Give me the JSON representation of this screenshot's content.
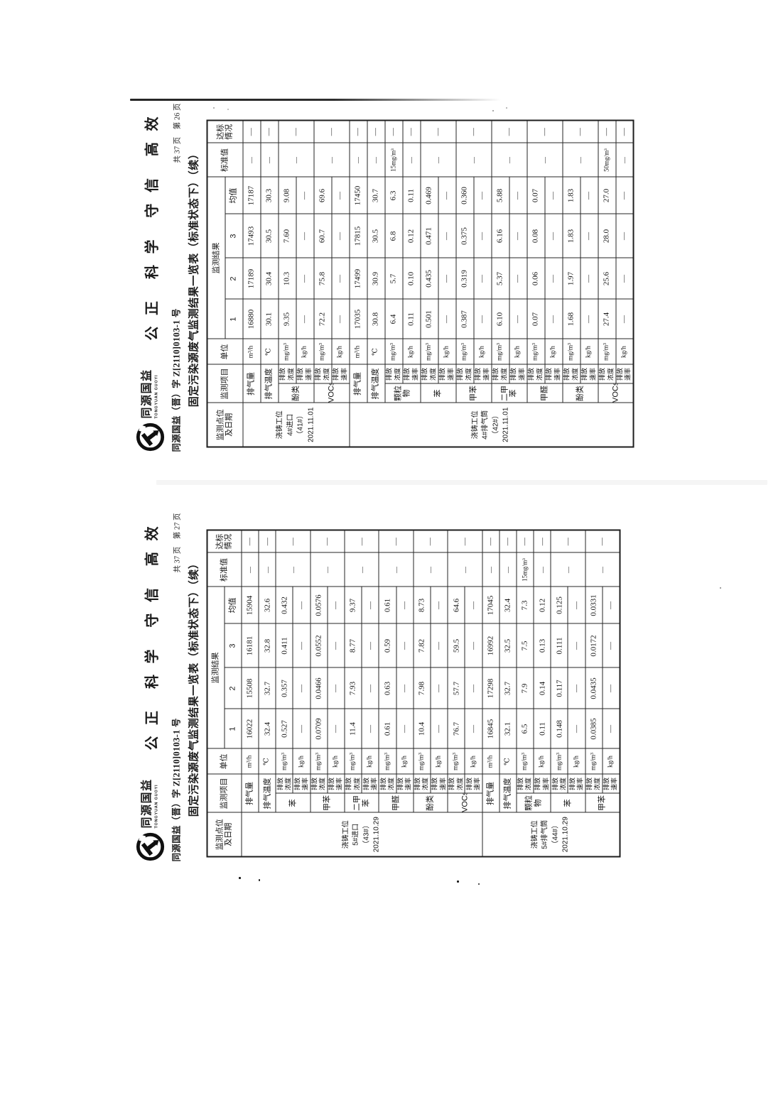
{
  "letterhead": {
    "brand_cn": "同源国益",
    "brand_en": "TONGYUAN GUOYI",
    "motto": [
      "公 正",
      "科 学",
      "守 信",
      "高 效"
    ],
    "doc_no": "同源国益（晋）字 Z[2110]0103-1 号",
    "title": "固定污染源废气监测结果一览表（标准状态下）（续）"
  },
  "labels": {
    "head": {
      "site": "监测点位\n及日期",
      "item": "监测项目",
      "unit": "单位",
      "result": "监测结果",
      "cols": [
        "1",
        "2",
        "3",
        "均值"
      ],
      "std": "标准值",
      "ok": "达标\n情况"
    },
    "conc": "排放\n浓度",
    "rate": "排放\n速率",
    "unit_conc": "mg/m³",
    "unit_rate": "kg/h"
  },
  "pages": [
    {
      "page_info": "共 37 页　第 26 页",
      "blocks": [
        {
          "site": [
            "浇铸工位",
            "4#进口",
            "（41#）",
            "2021.11.01"
          ],
          "rows": [
            {
              "item": "排气量",
              "unit": "m³/h",
              "vals": [
                "16880",
                "17189",
                "17493",
                "17187"
              ],
              "std": "—",
              "ok": "—"
            },
            {
              "item": "排气温度",
              "unit": "℃",
              "vals": [
                "30.1",
                "30.4",
                "30.5",
                "30.3"
              ],
              "std": "—",
              "ok": "—"
            },
            {
              "item": "酚类",
              "conc": [
                "9.35",
                "10.3",
                "7.60",
                "9.08"
              ],
              "rate": [
                "—",
                "—",
                "—",
                "—"
              ],
              "std": "—",
              "ok": "—"
            },
            {
              "item": "VOCs",
              "conc": [
                "72.2",
                "75.8",
                "60.7",
                "69.6"
              ],
              "rate": [
                "—",
                "—",
                "—",
                "—"
              ],
              "std": "—",
              "ok": "—"
            }
          ]
        },
        {
          "site": [
            "浇铸工位",
            "4#排气筒",
            "（42#）",
            "2021.11.01"
          ],
          "rows": [
            {
              "item": "排气量",
              "unit": "m³/h",
              "vals": [
                "17035",
                "17499",
                "17815",
                "17450"
              ],
              "std": "—",
              "ok": "—"
            },
            {
              "item": "排气温度",
              "unit": "℃",
              "vals": [
                "30.8",
                "30.9",
                "30.5",
                "30.7"
              ],
              "std": "—",
              "ok": "—"
            },
            {
              "item": "颗粒物",
              "conc": [
                "6.4",
                "5.7",
                "6.8",
                "6.3"
              ],
              "rate": [
                "0.11",
                "0.10",
                "0.12",
                "0.11"
              ],
              "std_conc": "15mg/m³",
              "std_rate": "—",
              "ok_conc": "—",
              "ok_rate": "—"
            },
            {
              "item": "苯",
              "conc": [
                "0.501",
                "0.435",
                "0.471",
                "0.469"
              ],
              "rate": [
                "—",
                "—",
                "—",
                "—"
              ],
              "std": "—",
              "ok": "—"
            },
            {
              "item": "甲苯",
              "conc": [
                "0.387",
                "0.319",
                "0.375",
                "0.360"
              ],
              "rate": [
                "—",
                "—",
                "—",
                "—"
              ],
              "std": "—",
              "ok": "—"
            },
            {
              "item": "二甲苯",
              "conc": [
                "6.10",
                "5.37",
                "6.16",
                "5.88"
              ],
              "rate": [
                "—",
                "—",
                "—",
                "—"
              ],
              "std": "—",
              "ok": "—"
            },
            {
              "item": "甲醛",
              "conc": [
                "0.07",
                "0.06",
                "0.08",
                "0.07"
              ],
              "rate": [
                "—",
                "—",
                "—",
                "—"
              ],
              "std": "—",
              "ok": "—"
            },
            {
              "item": "酚类",
              "conc": [
                "1.68",
                "1.97",
                "1.83",
                "1.83"
              ],
              "rate": [
                "—",
                "—",
                "—",
                "—"
              ],
              "std": "—",
              "ok": "—"
            },
            {
              "item": "VOCs",
              "conc": [
                "27.4",
                "25.6",
                "28.0",
                "27.0"
              ],
              "rate": [
                "—",
                "—",
                "—",
                "—"
              ],
              "std_conc": "50mg/m³",
              "std_rate": "—",
              "ok_conc": "—",
              "ok_rate": "—"
            }
          ]
        }
      ]
    },
    {
      "page_info": "共 37 页　第 27 页",
      "blocks": [
        {
          "site": [
            "浇铸工位",
            "5#进口",
            "（43#）",
            "2021.10.29"
          ],
          "rows": [
            {
              "item": "排气量",
              "unit": "m³/h",
              "vals": [
                "16022",
                "15508",
                "16181",
                "15904"
              ],
              "std": "—",
              "ok": "—"
            },
            {
              "item": "排气温度",
              "unit": "℃",
              "vals": [
                "32.4",
                "32.7",
                "32.8",
                "32.6"
              ],
              "std": "—",
              "ok": "—"
            },
            {
              "item": "苯",
              "conc": [
                "0.527",
                "0.357",
                "0.411",
                "0.432"
              ],
              "rate": [
                "—",
                "—",
                "—",
                "—"
              ],
              "std": "—",
              "ok": "—"
            },
            {
              "item": "甲苯",
              "conc": [
                "0.0709",
                "0.0466",
                "0.0552",
                "0.0576"
              ],
              "rate": [
                "—",
                "—",
                "—",
                "—"
              ],
              "std": "—",
              "ok": "—"
            },
            {
              "item": "二甲苯",
              "conc": [
                "11.4",
                "7.93",
                "8.77",
                "9.37"
              ],
              "rate": [
                "—",
                "—",
                "—",
                "—"
              ],
              "std": "—",
              "ok": "—"
            },
            {
              "item": "甲醛",
              "conc": [
                "0.61",
                "0.63",
                "0.59",
                "0.61"
              ],
              "rate": [
                "—",
                "—",
                "—",
                "—"
              ],
              "std": "—",
              "ok": "—"
            },
            {
              "item": "酚类",
              "conc": [
                "10.4",
                "7.98",
                "7.82",
                "8.73"
              ],
              "rate": [
                "—",
                "—",
                "—",
                "—"
              ],
              "std": "—",
              "ok": "—"
            },
            {
              "item": "VOCs",
              "conc": [
                "76.7",
                "57.7",
                "59.5",
                "64.6"
              ],
              "rate": [
                "—",
                "—",
                "—",
                "—"
              ],
              "std": "—",
              "ok": "—"
            }
          ]
        },
        {
          "site": [
            "浇铸工位",
            "5#排气筒",
            "（44#）",
            "2021.10.29"
          ],
          "rows": [
            {
              "item": "排气量",
              "unit": "m³/h",
              "vals": [
                "16845",
                "17298",
                "16992",
                "17045"
              ],
              "std": "—",
              "ok": "—"
            },
            {
              "item": "排气温度",
              "unit": "℃",
              "vals": [
                "32.1",
                "32.7",
                "32.5",
                "32.4"
              ],
              "std": "—",
              "ok": "—"
            },
            {
              "item": "颗粒物",
              "conc": [
                "6.5",
                "7.9",
                "7.5",
                "7.3"
              ],
              "rate": [
                "0.11",
                "0.14",
                "0.13",
                "0.12"
              ],
              "std_conc": "15mg/m³",
              "std_rate": "—",
              "ok_conc": "—",
              "ok_rate": "—"
            },
            {
              "item": "苯",
              "conc": [
                "0.148",
                "0.117",
                "0.111",
                "0.125"
              ],
              "rate": [
                "—",
                "—",
                "—",
                "—"
              ],
              "std": "—",
              "ok": "—"
            },
            {
              "item": "甲苯",
              "conc": [
                "0.0385",
                "0.0435",
                "0.0172",
                "0.0331"
              ],
              "rate": [
                "—",
                "—",
                "—",
                "—"
              ],
              "std": "—",
              "ok": "—"
            }
          ]
        }
      ]
    }
  ]
}
